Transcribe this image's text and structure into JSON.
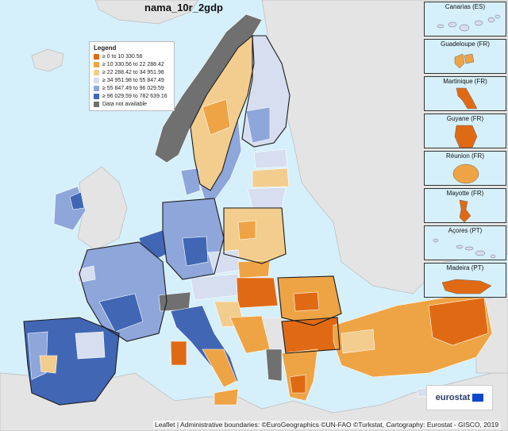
{
  "map": {
    "title": "nama_10r_2gdp",
    "colors": {
      "sea": "#d6f0fb",
      "nodata_land": "#e4e4e4",
      "class1": "#e06a14",
      "class2": "#eea444",
      "class3": "#f3cd8e",
      "class4": "#d6def0",
      "class5": "#8ea6da",
      "class6": "#4166b4",
      "na": "#707070",
      "border": "#1a1a1a"
    }
  },
  "legend": {
    "title": "Legend",
    "items": [
      {
        "label": "≥ 0 to 10 330.56",
        "color": "#e06a14"
      },
      {
        "label": "≥ 10 330.56 to 22 288.42",
        "color": "#eea444"
      },
      {
        "label": "≥ 22 288.42 to 34 951.98",
        "color": "#f3cd8e"
      },
      {
        "label": "≥ 34 951.98 to 55 847.49",
        "color": "#d6def0"
      },
      {
        "label": "≥ 55 847.49 to 96 029.59",
        "color": "#8ea6da"
      },
      {
        "label": "≥ 96 029.59 to 782 639.16",
        "color": "#4166b4"
      },
      {
        "label": "Data not available",
        "color": "#707070"
      }
    ]
  },
  "insets": [
    {
      "label": "Canarias (ES)",
      "color": "#d6def0"
    },
    {
      "label": "Guadeloupe (FR)",
      "color": "#eea444"
    },
    {
      "label": "Martinique (FR)",
      "color": "#e06a14"
    },
    {
      "label": "Guyane (FR)",
      "color": "#e06a14"
    },
    {
      "label": "Réunion (FR)",
      "color": "#eea444"
    },
    {
      "label": "Mayotte (FR)",
      "color": "#e06a14"
    },
    {
      "label": "Açores (PT)",
      "color": "#d6def0"
    },
    {
      "label": "Madeira (PT)",
      "color": "#e06a14"
    }
  ],
  "branding": {
    "logo_text": "eurostat"
  },
  "attribution": "Leaflet | Administrative boundaries: ©EuroGeographics ©UN-FAO ©Turkstat, Cartography: Eurostat - GISCO, 2019"
}
